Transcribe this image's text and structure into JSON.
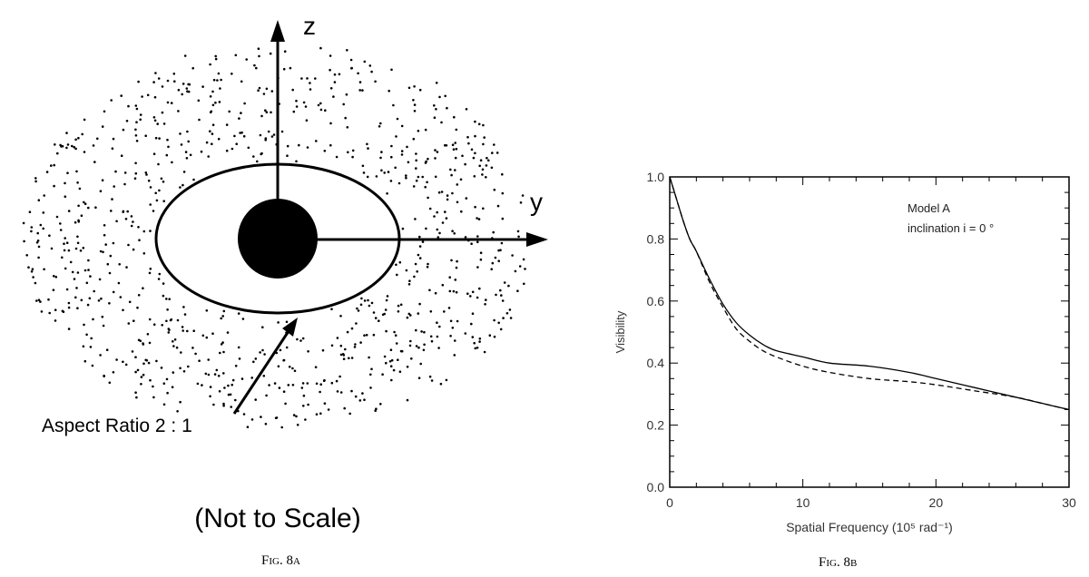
{
  "fig8a": {
    "axis_z": "z",
    "axis_y": "y",
    "aspect_label": "Aspect Ratio 2 : 1",
    "scale_note": "(Not to Scale)",
    "caption": "Fig. 8a"
  },
  "fig8b": {
    "caption": "Fig. 8b",
    "legend_line1": "Model A",
    "legend_line2": "inclination i = 0 °",
    "ylabel": "Visibility",
    "xlabel": "Spatial Frequency (10⁵ rad⁻¹)"
  },
  "chart_data": {
    "type": "line",
    "ylabel": "Visibility",
    "xlabel": "Spatial Frequency (10⁵ rad⁻¹)",
    "xlim": [
      0,
      30
    ],
    "ylim": [
      0.0,
      1.0
    ],
    "xticks": [
      "0",
      "10",
      "20",
      "30"
    ],
    "yticks": [
      "0.0",
      "0.2",
      "0.4",
      "0.6",
      "0.8",
      "1.0"
    ],
    "annotations": [
      "Model A",
      "inclination i = 0 °"
    ],
    "series": [
      {
        "style": "solid",
        "x": [
          0,
          0.5,
          1,
          1.5,
          2,
          3,
          4,
          5,
          6,
          7,
          8,
          10,
          12,
          15,
          18,
          20,
          23,
          26,
          28,
          30
        ],
        "y": [
          1.0,
          0.93,
          0.86,
          0.8,
          0.76,
          0.67,
          0.59,
          0.53,
          0.49,
          0.46,
          0.44,
          0.42,
          0.4,
          0.39,
          0.37,
          0.35,
          0.32,
          0.29,
          0.27,
          0.25
        ]
      },
      {
        "style": "dashed",
        "x": [
          0,
          0.5,
          1,
          1.5,
          2,
          3,
          4,
          5,
          6,
          7,
          8,
          10,
          12,
          15,
          18,
          20,
          23,
          26,
          28,
          30
        ],
        "y": [
          1.0,
          0.93,
          0.86,
          0.8,
          0.76,
          0.66,
          0.58,
          0.51,
          0.47,
          0.44,
          0.42,
          0.39,
          0.37,
          0.35,
          0.34,
          0.33,
          0.31,
          0.29,
          0.27,
          0.25
        ]
      }
    ]
  }
}
